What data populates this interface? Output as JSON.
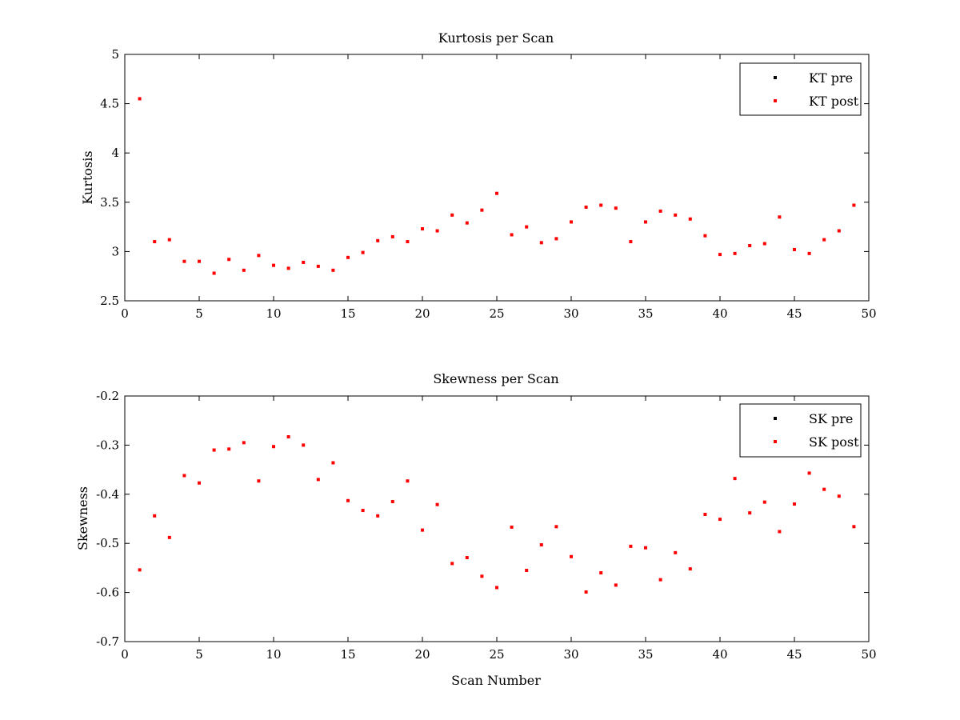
{
  "chart_data": [
    {
      "type": "scatter",
      "title": "Kurtosis per Scan",
      "xlabel": "",
      "ylabel": "Kurtosis",
      "xlim": [
        0,
        50
      ],
      "ylim": [
        2.5,
        5
      ],
      "xticks": [
        0,
        5,
        10,
        15,
        20,
        25,
        30,
        35,
        40,
        45,
        50
      ],
      "yticks": [
        2.5,
        3,
        3.5,
        4,
        4.5,
        5
      ],
      "grid": false,
      "legend_position": "top-right",
      "series": [
        {
          "name": "KT pre",
          "color": "#000000",
          "x": [],
          "y": []
        },
        {
          "name": "KT post",
          "color": "#ff0000",
          "x": [
            1,
            2,
            3,
            4,
            5,
            6,
            7,
            8,
            9,
            10,
            11,
            12,
            13,
            14,
            15,
            16,
            17,
            18,
            19,
            20,
            21,
            22,
            23,
            24,
            25,
            26,
            27,
            28,
            29,
            30,
            31,
            32,
            33,
            34,
            35,
            36,
            37,
            38,
            39,
            40,
            41,
            42,
            43,
            44,
            45,
            46,
            47,
            48,
            49
          ],
          "y": [
            4.55,
            3.1,
            3.12,
            2.9,
            2.9,
            2.78,
            2.92,
            2.81,
            2.96,
            2.86,
            2.83,
            2.89,
            2.85,
            2.81,
            2.94,
            2.99,
            3.11,
            3.15,
            3.1,
            3.23,
            3.21,
            3.37,
            3.29,
            3.42,
            3.59,
            3.17,
            3.25,
            3.09,
            3.13,
            3.3,
            3.45,
            3.47,
            3.44,
            3.1,
            3.3,
            3.41,
            3.37,
            3.33,
            3.16,
            2.97,
            2.98,
            3.06,
            3.08,
            3.35,
            3.02,
            2.98,
            3.12,
            3.21,
            3.47
          ]
        }
      ]
    },
    {
      "type": "scatter",
      "title": "Skewness per Scan",
      "xlabel": "Scan Number",
      "ylabel": "Skewness",
      "xlim": [
        0,
        50
      ],
      "ylim": [
        -0.7,
        -0.2
      ],
      "xticks": [
        0,
        5,
        10,
        15,
        20,
        25,
        30,
        35,
        40,
        45,
        50
      ],
      "yticks": [
        -0.7,
        -0.6,
        -0.5,
        -0.4,
        -0.3,
        -0.2
      ],
      "grid": false,
      "legend_position": "top-right",
      "series": [
        {
          "name": "SK pre",
          "color": "#000000",
          "x": [],
          "y": []
        },
        {
          "name": "SK post",
          "color": "#ff0000",
          "x": [
            1,
            2,
            3,
            4,
            5,
            6,
            7,
            8,
            9,
            10,
            11,
            12,
            13,
            14,
            15,
            16,
            17,
            18,
            19,
            20,
            21,
            22,
            23,
            24,
            25,
            26,
            27,
            28,
            29,
            30,
            31,
            32,
            33,
            34,
            35,
            36,
            37,
            38,
            39,
            40,
            41,
            42,
            43,
            44,
            45,
            46,
            47,
            48,
            49
          ],
          "y": [
            -0.554,
            -0.444,
            -0.488,
            -0.362,
            -0.377,
            -0.31,
            -0.308,
            -0.295,
            -0.373,
            -0.303,
            -0.283,
            -0.3,
            -0.37,
            -0.336,
            -0.413,
            -0.433,
            -0.444,
            -0.415,
            -0.373,
            -0.473,
            -0.421,
            -0.541,
            -0.529,
            -0.567,
            -0.59,
            -0.467,
            -0.555,
            -0.503,
            -0.466,
            -0.527,
            -0.599,
            -0.56,
            -0.585,
            -0.506,
            -0.509,
            -0.574,
            -0.519,
            -0.552,
            -0.441,
            -0.451,
            -0.368,
            -0.438,
            -0.416,
            -0.476,
            -0.42,
            -0.357,
            -0.39,
            -0.404,
            -0.466
          ]
        }
      ]
    }
  ]
}
